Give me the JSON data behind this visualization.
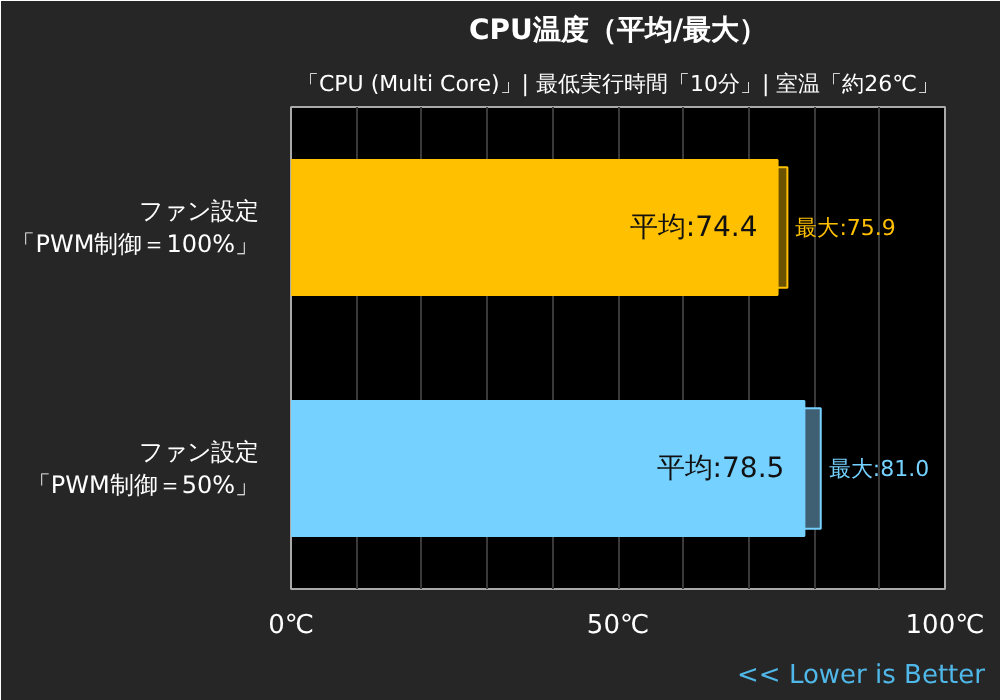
{
  "chart_data": {
    "type": "bar",
    "orientation": "horizontal",
    "title": "CPU温度（平均/最大）",
    "subtitle": "「CPU (Multi Core)」| 最低実行時間「10分」| 室温「約26℃」",
    "categories": [
      "ファン設定「PWM制御＝100%」",
      "ファン設定「PWM制御＝50%」"
    ],
    "series": [
      {
        "colors": [
          "#ffc000",
          "#75d1ff"
        ],
        "values": [
          74.4,
          78.5
        ],
        "value_labels": [
          "平均:74.4",
          "平均:78.5"
        ]
      },
      {
        "colors": [
          "#6b5200",
          "#3f5f73"
        ],
        "values": [
          75.9,
          81.0
        ],
        "value_labels": [
          "最大:75.9",
          "最大:81.0"
        ]
      }
    ],
    "xlim": [
      0,
      100
    ],
    "xticks": [
      {
        "value": 0,
        "label": "0℃"
      },
      {
        "value": 10,
        "label": null
      },
      {
        "value": 20,
        "label": null
      },
      {
        "value": 30,
        "label": null
      },
      {
        "value": 40,
        "label": null
      },
      {
        "value": 50,
        "label": "50℃"
      },
      {
        "value": 60,
        "label": null
      },
      {
        "value": 70,
        "label": null
      },
      {
        "value": 80,
        "label": null
      },
      {
        "value": 90,
        "label": null
      },
      {
        "value": 100,
        "label": "100℃"
      }
    ],
    "grid": "x",
    "annotations": [
      "<< Lower is Better"
    ]
  }
}
